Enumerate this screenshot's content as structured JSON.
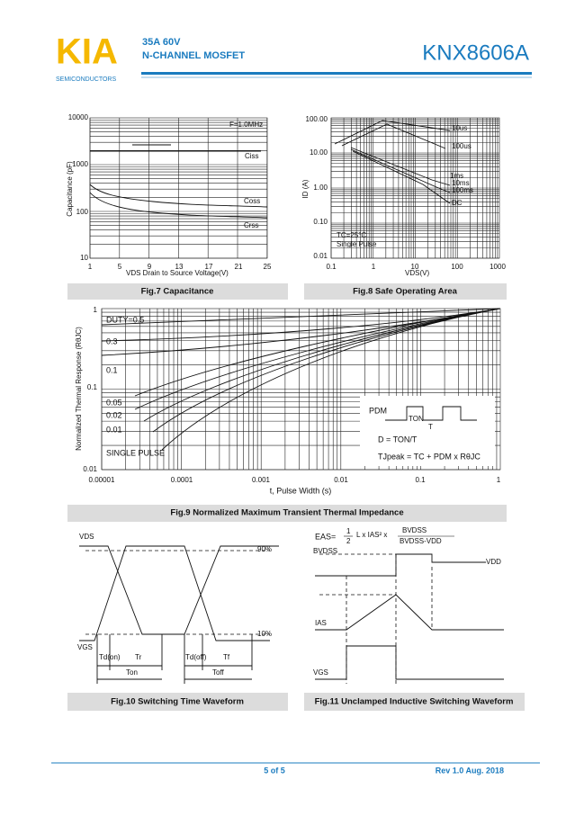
{
  "header": {
    "logo": "KIA",
    "logo_sub": "SEMICONDUCTORS",
    "rating": "35A   60V",
    "type": "N-CHANNEL MOSFET",
    "part": "KNX8606A"
  },
  "fig7": {
    "y_label": "Capacitance (pF)",
    "x_label": "VDS Drain to Source Voltage(V)",
    "y_ticks": [
      "10000",
      "1000",
      "100",
      "10"
    ],
    "x_ticks": [
      "1",
      "5",
      "9",
      "13",
      "17",
      "21",
      "25"
    ],
    "freq": "F=1.0MHz",
    "ciss": "Ciss",
    "coss": "Coss",
    "crss": "Crss",
    "caption": "Fig.7 Capacitance"
  },
  "fig8": {
    "y_label": "ID (A)",
    "x_label": "VDS(V)",
    "y_ticks": [
      "100.00",
      "10.00",
      "1.00",
      "0.10",
      "0.01"
    ],
    "x_ticks": [
      "0.1",
      "1",
      "10",
      "100",
      "1000"
    ],
    "labels": [
      "10us",
      "100us",
      "1ms",
      "10ms",
      "100ms",
      "DC"
    ],
    "temp": "TC=25°C",
    "pulse": "Single Pulse",
    "caption": "Fig.8 Safe Operating Area"
  },
  "fig9": {
    "y_label": "Normalized Thermal Response (RθJC)",
    "x_label": "t, Pulse Width (s)",
    "y_ticks": [
      "1",
      "0.1",
      "0.01"
    ],
    "x_ticks": [
      "0.00001",
      "0.0001",
      "0.001",
      "0.01",
      "0.1",
      "1"
    ],
    "duty": [
      "DUTY=0.5",
      "0.3",
      "0.1",
      "0.05",
      "0.02",
      "0.01",
      "SINGLE PULSE"
    ],
    "pdm": "PDM",
    "ton": "TON",
    "t": "T",
    "d_eq": "D = TON/T",
    "tj_eq": "TJpeak = TC + PDM x RθJC",
    "caption": "Fig.9 Normalized Maximum Transient Thermal Impedance"
  },
  "fig10": {
    "vds": "VDS",
    "p90": "90%",
    "p10": "10%",
    "vgs": "VGS",
    "tdon": "Td(on)",
    "tr": "Tr",
    "tdoff": "Td(off)",
    "tf": "Tf",
    "ton": "Ton",
    "toff": "Toff",
    "caption": "Fig.10 Switching Time Waveform"
  },
  "fig11": {
    "eas": "EAS=",
    "num": "1",
    "den": "2",
    "mid": "L x IAS² x",
    "frac_top": "BVDSS",
    "frac_bot": "BVDSS-VDD",
    "bvdss": "BVDSS",
    "vdd": "VDD",
    "ias": "IAS",
    "vgs": "VGS",
    "caption": "Fig.11 Unclamped Inductive Switching Waveform"
  },
  "footer": {
    "page": "5 of 5",
    "rev": "Rev 1.0 Aug. 2018"
  }
}
